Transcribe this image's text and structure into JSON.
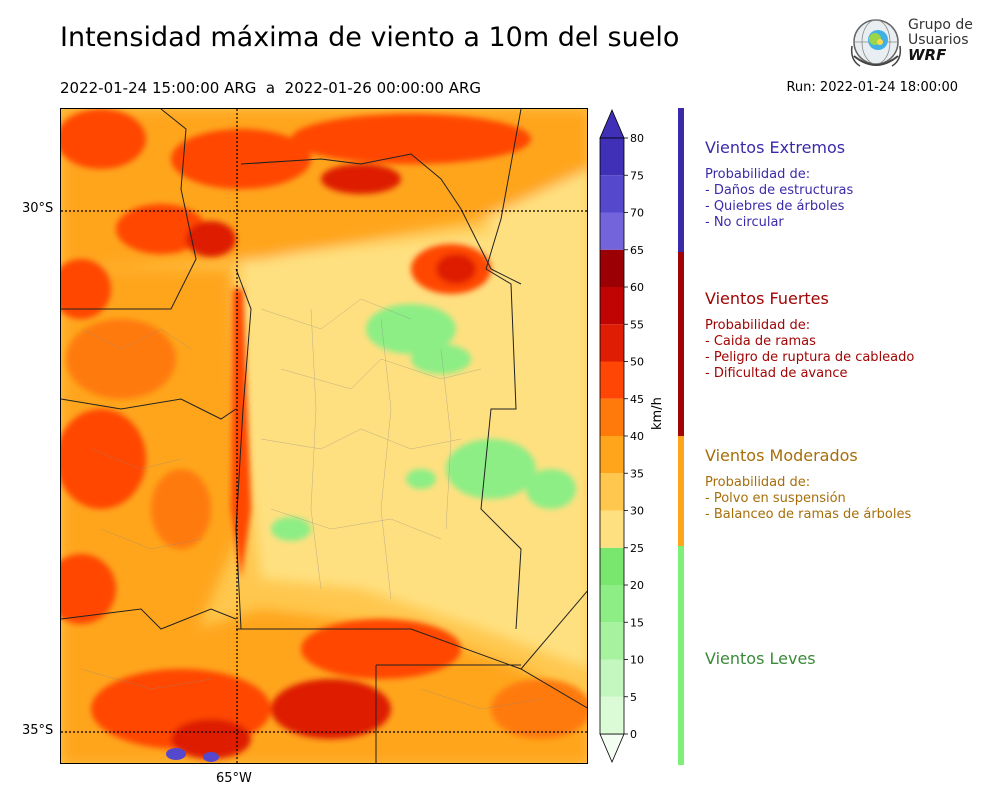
{
  "title": "Intensidad máxima de viento a 10m del suelo",
  "period": "2022-01-24 15:00:00 ARG  a  2022-01-26 00:00:00 ARG",
  "run": "Run: 2022-01-24 18:00:00",
  "logo": {
    "line1": "Grupo de",
    "line2": "Usuarios",
    "line3": "WRF"
  },
  "axes": {
    "lat_labels": [
      "30°S",
      "35°S"
    ],
    "lon_labels": [
      "65°W"
    ]
  },
  "colorbar": {
    "unit": "km/h",
    "ticks": [
      "0",
      "5",
      "10",
      "15",
      "20",
      "25",
      "30",
      "35",
      "40",
      "45",
      "50",
      "55",
      "60",
      "65",
      "70",
      "75",
      "80"
    ],
    "colors": [
      "#f4fdf2",
      "#dbfbd6",
      "#c4f7bf",
      "#a6f29f",
      "#8cee85",
      "#79e66e",
      "#ffe080",
      "#ffc74e",
      "#ffa51b",
      "#ff7a0a",
      "#ff4605",
      "#de1d04",
      "#c00404",
      "#9a0004",
      "#7464dc",
      "#5548cd",
      "#4030b8"
    ]
  },
  "categories": [
    {
      "title": "Vientos Extremos",
      "lines": [
        "Probabilidad de:",
        "- Daños de estructuras",
        "- Quiebres de árboles",
        "- No circular"
      ],
      "color": "#3a2aaa"
    },
    {
      "title": "Vientos Fuertes",
      "lines": [
        "Probabilidad de:",
        "- Caida de ramas",
        "- Peligro de ruptura de cableado",
        "- Dificultad de avance"
      ],
      "color": "#a00404"
    },
    {
      "title": "Vientos Moderados",
      "lines": [
        "Probabilidad de:",
        "- Polvo en suspensión",
        "- Balanceo de ramas de árboles"
      ],
      "color": "#a66e0a"
    },
    {
      "title": "Vientos Leves",
      "lines": [],
      "color": "#3a8a3a"
    }
  ],
  "legend_bar_colors": [
    "#3a2aaa",
    "#a00404",
    "#ffa51b",
    "#7ef07a"
  ]
}
